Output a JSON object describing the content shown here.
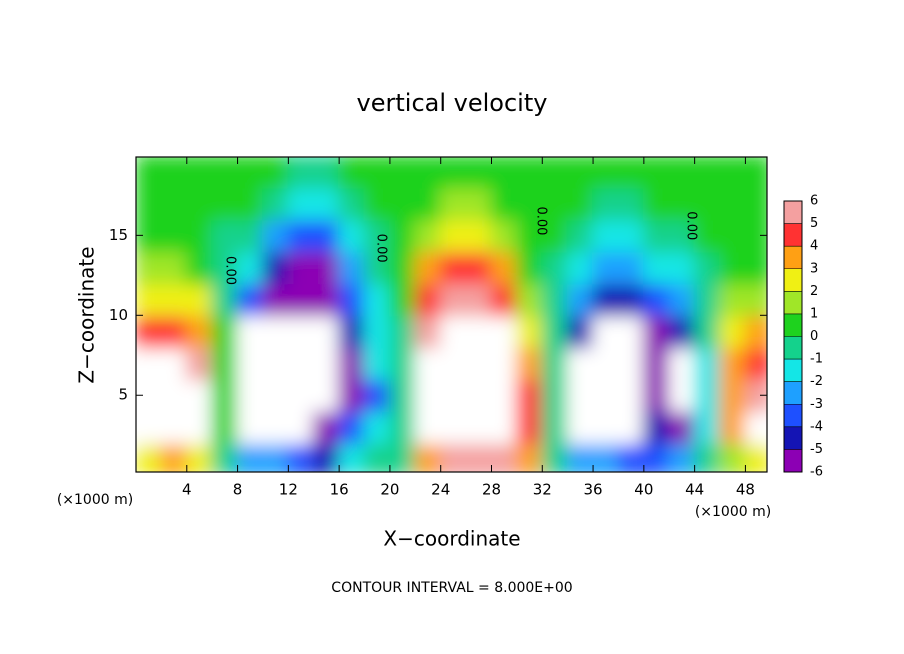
{
  "chart_data": {
    "type": "contour",
    "title": "vertical velocity",
    "x_label": "X−coordinate",
    "y_label": "Z−coordinate",
    "x_unit": "(×1000 m)",
    "y_unit": "(×1000 m)",
    "footer": "CONTOUR INTERVAL = 8.000E+00",
    "xlim": [
      0,
      49.7
    ],
    "ylim": [
      0.2,
      19.9
    ],
    "xticks": [
      4,
      8,
      12,
      16,
      20,
      24,
      28,
      32,
      36,
      40,
      44,
      48
    ],
    "yticks": [
      5,
      10,
      15
    ],
    "x": [
      1,
      3,
      5,
      7,
      9,
      11,
      13,
      15,
      17,
      19,
      21,
      23,
      25,
      27,
      29,
      31,
      33,
      35,
      37,
      39,
      41,
      43,
      45,
      47,
      49
    ],
    "y": [
      1,
      3,
      5,
      7,
      9,
      11,
      13,
      15,
      17,
      19
    ],
    "values": [
      [
        3,
        4,
        3,
        0,
        -2,
        -2,
        -3,
        -4,
        -1,
        0,
        0,
        4,
        6,
        6,
        6,
        4,
        0,
        -2,
        -2,
        -3,
        -3,
        -2,
        0,
        2,
        3
      ],
      [
        8,
        8,
        7,
        1,
        -8,
        -8,
        -8,
        -5,
        -3,
        -1,
        0,
        8,
        8,
        8,
        8,
        5,
        0,
        -8,
        -8,
        -8,
        -4,
        -5,
        -1,
        4,
        8
      ],
      [
        8,
        8,
        7,
        1,
        -8,
        -8,
        -8,
        -8,
        -5,
        -3,
        0,
        8,
        8,
        8,
        8,
        5,
        0,
        -8,
        -8,
        -8,
        -5,
        -8,
        -1,
        4,
        6
      ],
      [
        8,
        8,
        6,
        1,
        -8,
        -8,
        -8,
        -8,
        -5,
        -1,
        0,
        8,
        8,
        8,
        8,
        4,
        0,
        -8,
        -8,
        -8,
        -5,
        -8,
        -1,
        4,
        5
      ],
      [
        5,
        5,
        4,
        1,
        -7,
        -8,
        -8,
        -8,
        -4,
        -1,
        0,
        6,
        8,
        8,
        7,
        3,
        0,
        -4,
        -7,
        -7,
        -6,
        -4,
        0,
        3,
        4
      ],
      [
        3,
        3,
        3,
        0,
        -3,
        -6,
        -6,
        -6,
        -3,
        -1,
        0.5,
        5,
        6,
        6,
        5,
        2,
        0,
        -2,
        -4,
        -4,
        -3,
        -2,
        0,
        2,
        2
      ],
      [
        2,
        2,
        1,
        0,
        -1,
        -4,
        -5,
        -5,
        -2,
        0,
        1,
        4,
        5,
        5,
        4,
        1,
        0,
        -1,
        -2,
        -2,
        -1,
        -1,
        0,
        1,
        1
      ],
      [
        1,
        1,
        1,
        0,
        0,
        -2,
        -3,
        -3,
        -1,
        0,
        1,
        2,
        3,
        3,
        2,
        1,
        0.5,
        0,
        -1,
        -1,
        0,
        0,
        0.5,
        0.5,
        1
      ],
      [
        0.5,
        0.5,
        0.5,
        0.5,
        0.5,
        0,
        -1,
        -1,
        0,
        0.5,
        1,
        1,
        2,
        2,
        1,
        0.5,
        0.5,
        0.5,
        0,
        0,
        0.5,
        0.5,
        0.5,
        0.5,
        0.5
      ],
      [
        0.5,
        0.5,
        0.5,
        0.5,
        0.5,
        0.5,
        0,
        0,
        0.5,
        0.5,
        0.5,
        1,
        1,
        1,
        0.5,
        0.5,
        0.5,
        0.5,
        0.5,
        0.5,
        0.5,
        0.5,
        0.5,
        0.5,
        0.5
      ]
    ],
    "levels": [
      -6,
      -5,
      -4,
      -3,
      -2,
      -1,
      0,
      1,
      2,
      3,
      4,
      5,
      6
    ],
    "colors": [
      "#8c00b4",
      "#1414b4",
      "#1e50ff",
      "#1ea0ff",
      "#14e6e6",
      "#14d28c",
      "#1ed21e",
      "#a0e628",
      "#f0f014",
      "#ffa014",
      "#ff3232",
      "#f4a0a0"
    ],
    "out_of_range_color": "#ffffff",
    "contour_labels": [
      {
        "text": "0.00",
        "x": 7.4,
        "y": 12.8
      },
      {
        "text": "0.00",
        "x": 19.3,
        "y": 14.2
      },
      {
        "text": "0.00",
        "x": 31.9,
        "y": 15.9
      },
      {
        "text": "0.00",
        "x": 43.7,
        "y": 15.6
      }
    ]
  }
}
